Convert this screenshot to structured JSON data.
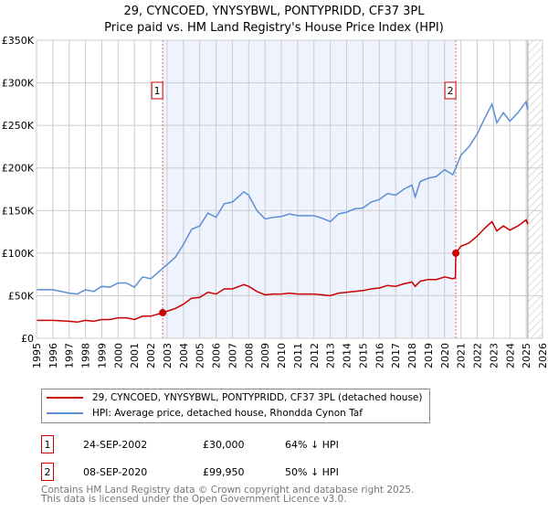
{
  "title": "29, CYNCOED, YNYSYBWL, PONTYPRIDD, CF37 3PL",
  "subtitle": "Price paid vs. HM Land Registry's House Price Index (HPI)",
  "chart_data": {
    "type": "line",
    "xlim": [
      1995,
      2026
    ],
    "ylim": [
      0,
      350000
    ],
    "x_ticks": [
      "1995",
      "1996",
      "1997",
      "1998",
      "1999",
      "2000",
      "2001",
      "2002",
      "2003",
      "2004",
      "2005",
      "2006",
      "2007",
      "2008",
      "2009",
      "2010",
      "2011",
      "2012",
      "2013",
      "2014",
      "2015",
      "2016",
      "2017",
      "2018",
      "2019",
      "2020",
      "2021",
      "2022",
      "2023",
      "2024",
      "2025",
      "2026"
    ],
    "y_ticks": [
      {
        "v": 0,
        "label": "£0"
      },
      {
        "v": 50000,
        "label": "£50K"
      },
      {
        "v": 100000,
        "label": "£100K"
      },
      {
        "v": 150000,
        "label": "£150K"
      },
      {
        "v": 200000,
        "label": "£200K"
      },
      {
        "v": 250000,
        "label": "£250K"
      },
      {
        "v": 300000,
        "label": "£300K"
      },
      {
        "v": 350000,
        "label": "£350K"
      }
    ],
    "grid": true,
    "shaded_range": [
      2002.73,
      2020.69
    ],
    "hatched_from": 2025.1,
    "series": [
      {
        "name": "29, CYNCOED, YNYSYBWL, PONTYPRIDD, CF37 3PL (detached house)",
        "color": "#cc0000",
        "x": [
          1995,
          1996,
          1997,
          1997.5,
          1998,
          1998.5,
          1999,
          1999.5,
          2000,
          2000.5,
          2001,
          2001.5,
          2002,
          2002.73,
          2003.5,
          2004,
          2004.5,
          2005,
          2005.5,
          2006,
          2006.5,
          2007,
          2007.7,
          2008,
          2008.5,
          2009,
          2009.5,
          2010,
          2010.5,
          2011,
          2012,
          2012.5,
          2013,
          2013.5,
          2014,
          2014.5,
          2015,
          2015.5,
          2016,
          2016.5,
          2017,
          2017.5,
          2018,
          2018.2,
          2018.5,
          2019,
          2019.5,
          2020,
          2020.5,
          2020.66,
          2020.69,
          2021,
          2021.5,
          2022,
          2022.5,
          2022.9,
          2023.2,
          2023.6,
          2024,
          2024.5,
          2025,
          2025.1
        ],
        "y": [
          21000,
          21000,
          20000,
          19000,
          21000,
          20000,
          22000,
          22000,
          24000,
          24000,
          22000,
          26000,
          26000,
          30000,
          35000,
          40000,
          47000,
          48000,
          54000,
          52000,
          58000,
          58000,
          63000,
          61000,
          55000,
          51000,
          52000,
          52000,
          53000,
          52000,
          52000,
          51000,
          50000,
          53000,
          54000,
          55000,
          56000,
          58000,
          59000,
          62000,
          61000,
          64000,
          66000,
          61000,
          67000,
          69000,
          69000,
          72000,
          70000,
          71000,
          99950,
          108000,
          112000,
          120000,
          130000,
          137000,
          126000,
          132000,
          127000,
          132000,
          139000,
          134000
        ]
      },
      {
        "name": "HPI: Average price, detached house, Rhondda Cynon Taf",
        "color": "#5b8fd4",
        "x": [
          1995,
          1996,
          1997,
          1997.5,
          1998,
          1998.5,
          1999,
          1999.5,
          2000,
          2000.5,
          2001,
          2001.5,
          2002,
          2002.73,
          2003.5,
          2004,
          2004.5,
          2005,
          2005.5,
          2006,
          2006.5,
          2007,
          2007.7,
          2008,
          2008.5,
          2009,
          2009.5,
          2010,
          2010.5,
          2011,
          2012,
          2012.5,
          2013,
          2013.5,
          2014,
          2014.5,
          2015,
          2015.5,
          2016,
          2016.5,
          2017,
          2017.5,
          2018,
          2018.2,
          2018.5,
          2019,
          2019.5,
          2020,
          2020.5,
          2020.69,
          2021,
          2021.5,
          2022,
          2022.5,
          2022.9,
          2023.2,
          2023.6,
          2024,
          2024.5,
          2025,
          2025.1
        ],
        "y": [
          57000,
          57000,
          53000,
          52000,
          57000,
          55000,
          61000,
          60000,
          65000,
          65000,
          60000,
          72000,
          70000,
          82000,
          95000,
          110000,
          128000,
          132000,
          147000,
          142000,
          158000,
          160000,
          172000,
          168000,
          150000,
          140000,
          142000,
          143000,
          146000,
          144000,
          144000,
          141000,
          137000,
          146000,
          148000,
          152000,
          153000,
          160000,
          163000,
          170000,
          168000,
          175000,
          180000,
          166000,
          184000,
          188000,
          190000,
          198000,
          192000,
          200000,
          215000,
          225000,
          240000,
          260000,
          275000,
          253000,
          265000,
          255000,
          265000,
          278000,
          268000
        ]
      }
    ],
    "annotations": [
      {
        "label": "1",
        "x": 2002.73,
        "y": 30000
      },
      {
        "label": "2",
        "x": 2020.69,
        "y": 99950
      }
    ]
  },
  "legend": {
    "red": "29, CYNCOED, YNYSYBWL, PONTYPRIDD, CF37 3PL (detached house)",
    "blue": "HPI: Average price, detached house, Rhondda Cynon Taf"
  },
  "sales": [
    {
      "num": "1",
      "date": "24-SEP-2002",
      "price": "£30,000",
      "hpi": "64% ↓ HPI"
    },
    {
      "num": "2",
      "date": "08-SEP-2020",
      "price": "£99,950",
      "hpi": "50% ↓ HPI"
    }
  ],
  "footer": {
    "line1": "Contains HM Land Registry data © Crown copyright and database right 2025.",
    "line2": "This data is licensed under the Open Government Licence v3.0."
  }
}
